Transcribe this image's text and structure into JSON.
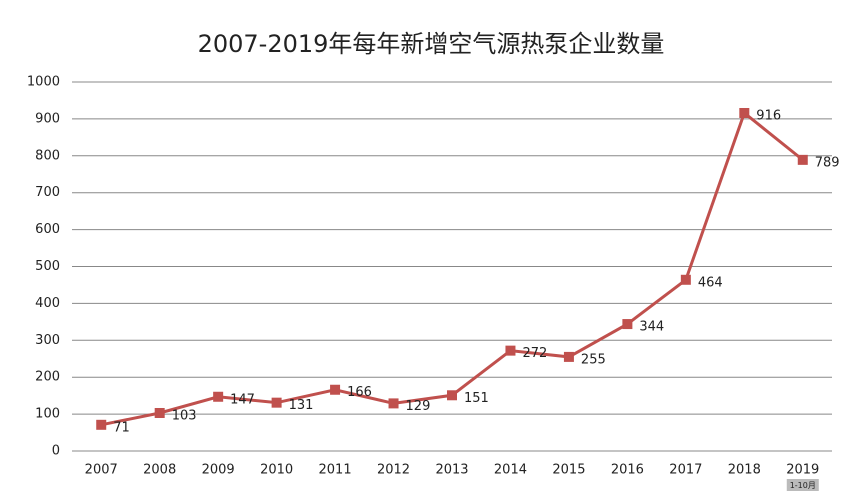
{
  "chart_data": {
    "type": "line",
    "title": "2007-2019年每年新增空气源热泵企业数量",
    "categories": [
      "2007",
      "2008",
      "2009",
      "2010",
      "2011",
      "2012",
      "2013",
      "2014",
      "2015",
      "2016",
      "2017",
      "2018",
      "2019"
    ],
    "series": [
      {
        "color": "#c0504d",
        "values": [
          71,
          103,
          147,
          131,
          166,
          129,
          151,
          272,
          255,
          344,
          464,
          916,
          789
        ]
      }
    ],
    "ylim": [
      0,
      1000
    ],
    "yticks": [
      0,
      100,
      200,
      300,
      400,
      500,
      600,
      700,
      800,
      900,
      1000
    ],
    "grid": true,
    "annotation": "1-10月"
  }
}
